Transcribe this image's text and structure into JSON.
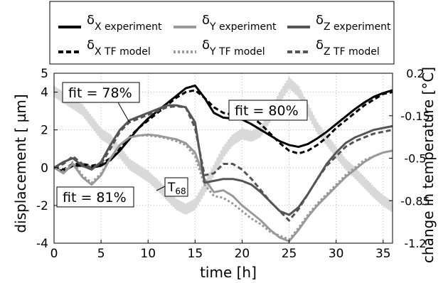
{
  "chart_data": {
    "type": "line",
    "xlabel": "time [h]",
    "ylabel": "displacement [ µm]",
    "ylabel_right": "change in temperature [°C]",
    "xlim": [
      0,
      36
    ],
    "ylim": [
      -4,
      5
    ],
    "ylim_right": [
      -1.2,
      0.2
    ],
    "x_ticks": [
      "0",
      "5",
      "10",
      "15",
      "20",
      "25",
      "30",
      "35"
    ],
    "y_ticks": [
      "-4",
      "-2",
      "0",
      "2",
      "4"
    ],
    "y_top_tick": "5",
    "y_right_ticks": [
      "0.2",
      "-0.15",
      "-0.5",
      "-0.85",
      "-1.2"
    ],
    "grid": true,
    "legend_position": "top",
    "colors": {
      "x": "#000000",
      "y": "#999999",
      "z": "#555555",
      "temp": "#d9d9d9"
    },
    "legend": [
      {
        "key": "x_exp",
        "symbol": "δ",
        "sub": "X experiment"
      },
      {
        "key": "y_exp",
        "symbol": "δ",
        "sub": "Y experiment"
      },
      {
        "key": "z_exp",
        "symbol": "δ",
        "sub": "Z experiment"
      },
      {
        "key": "x_tf",
        "symbol": "δ",
        "sub": "X  TF  model"
      },
      {
        "key": "y_tf",
        "symbol": "δ",
        "sub": "Y  TF  model"
      },
      {
        "key": "z_tf",
        "symbol": "δ",
        "sub": "Z  TF  model"
      }
    ],
    "annotations": {
      "fit_z": "fit = 78%",
      "fit_x": "fit = 80%",
      "fit_y": "fit = 81%",
      "temp_label": "T",
      "temp_label_sub": "68"
    },
    "series": [
      {
        "key": "x_exp",
        "color": "#000000",
        "style": "solid",
        "x": [
          0,
          1,
          2,
          3,
          4,
          5,
          6,
          7,
          8,
          9,
          10,
          11,
          12,
          13,
          14,
          15,
          16,
          17,
          18,
          19,
          20,
          21,
          22,
          23,
          24,
          25,
          26,
          27,
          28,
          29,
          30,
          31,
          32,
          33,
          34,
          35,
          36
        ],
        "y": [
          0,
          -0.2,
          0.1,
          0.1,
          0,
          0.1,
          0.4,
          0.9,
          1.5,
          2.1,
          2.6,
          3.0,
          3.4,
          3.8,
          4.2,
          4.35,
          3.7,
          2.9,
          2.65,
          2.6,
          2.55,
          2.3,
          2.0,
          1.7,
          1.4,
          1.2,
          1.1,
          1.25,
          1.55,
          1.9,
          2.3,
          2.7,
          3.1,
          3.45,
          3.75,
          3.95,
          4.1
        ]
      },
      {
        "key": "x_tf",
        "color": "#000000",
        "style": "dashed",
        "x": [
          0,
          1,
          2,
          3,
          4,
          5,
          6,
          7,
          8,
          9,
          10,
          11,
          12,
          13,
          14,
          15,
          16,
          17,
          18,
          19,
          20,
          21,
          22,
          23,
          24,
          25,
          26,
          27,
          28,
          29,
          30,
          31,
          32,
          33,
          34,
          35,
          36
        ],
        "y": [
          0,
          -0.1,
          0.2,
          0.2,
          0.1,
          0.2,
          0.5,
          1.0,
          1.6,
          2.1,
          2.5,
          2.9,
          3.3,
          3.7,
          4.0,
          4.1,
          3.7,
          3.2,
          2.9,
          2.8,
          2.8,
          2.7,
          2.3,
          1.8,
          1.3,
          0.9,
          0.75,
          0.9,
          1.2,
          1.6,
          2.1,
          2.5,
          2.9,
          3.3,
          3.6,
          3.9,
          4.0
        ]
      },
      {
        "key": "y_exp",
        "color": "#999999",
        "style": "solid",
        "x": [
          0,
          1,
          2,
          3,
          4,
          5,
          6,
          7,
          8,
          9,
          10,
          11,
          12,
          13,
          14,
          15,
          16,
          17,
          18,
          19,
          20,
          21,
          22,
          23,
          24,
          25,
          26,
          27,
          28,
          29,
          30,
          31,
          32,
          33,
          34,
          35,
          36
        ],
        "y": [
          0,
          -0.3,
          0.2,
          -0.5,
          -0.9,
          -0.4,
          0.5,
          1.2,
          1.6,
          1.7,
          1.75,
          1.7,
          1.6,
          1.5,
          1.3,
          0.8,
          -0.6,
          -1.3,
          -1.2,
          -1.5,
          -2.0,
          -2.4,
          -2.8,
          -3.3,
          -3.7,
          -3.9,
          -3.3,
          -2.6,
          -2.0,
          -1.5,
          -1.0,
          -0.5,
          -0.1,
          0.3,
          0.6,
          0.8,
          0.9
        ]
      },
      {
        "key": "y_tf",
        "color": "#999999",
        "style": "dotted",
        "x": [
          0,
          1,
          2,
          3,
          4,
          5,
          6,
          7,
          8,
          9,
          10,
          11,
          12,
          13,
          14,
          15,
          16,
          17,
          18,
          19,
          20,
          21,
          22,
          23,
          24,
          25,
          26,
          27,
          28,
          29,
          30,
          31,
          32,
          33,
          34,
          35,
          36
        ],
        "y": [
          0,
          -0.2,
          0.3,
          -0.4,
          -0.8,
          -0.3,
          0.5,
          1.2,
          1.6,
          1.7,
          1.7,
          1.65,
          1.55,
          1.4,
          1.2,
          0.6,
          -0.9,
          -1.5,
          -1.6,
          -1.9,
          -2.3,
          -2.7,
          -3.0,
          -3.4,
          -3.6,
          -3.8,
          -3.2,
          -2.5,
          -1.9,
          -1.4,
          -0.9,
          -0.4,
          0.0,
          0.4,
          0.6,
          0.8,
          0.9
        ]
      },
      {
        "key": "z_exp",
        "color": "#555555",
        "style": "solid",
        "x": [
          0,
          1,
          2,
          3,
          4,
          5,
          6,
          7,
          8,
          9,
          10,
          11,
          12,
          13,
          14,
          15,
          16,
          17,
          18,
          19,
          20,
          21,
          22,
          23,
          24,
          25,
          26,
          27,
          28,
          29,
          30,
          31,
          32,
          33,
          34,
          35,
          36
        ],
        "y": [
          0,
          0.3,
          0.5,
          0.1,
          -0.1,
          0.3,
          1.2,
          2.0,
          2.5,
          2.7,
          2.9,
          3.1,
          3.3,
          3.3,
          3.2,
          2.4,
          -0.8,
          -0.7,
          -0.6,
          -0.6,
          -0.7,
          -0.9,
          -1.3,
          -1.8,
          -2.3,
          -2.5,
          -2.1,
          -1.4,
          -0.6,
          0.2,
          0.8,
          1.3,
          1.6,
          1.8,
          2.0,
          2.1,
          2.2
        ]
      },
      {
        "key": "z_tf",
        "color": "#555555",
        "style": "dashed",
        "x": [
          0,
          1,
          2,
          3,
          4,
          5,
          6,
          7,
          8,
          9,
          10,
          11,
          12,
          13,
          14,
          15,
          16,
          17,
          18,
          19,
          20,
          21,
          22,
          23,
          24,
          25,
          26,
          27,
          28,
          29,
          30,
          31,
          32,
          33,
          34,
          35,
          36
        ],
        "y": [
          0,
          0.2,
          0.6,
          0.2,
          0.0,
          0.2,
          1.0,
          1.9,
          2.4,
          2.6,
          2.8,
          3.0,
          3.2,
          3.25,
          3.2,
          2.1,
          -0.4,
          -0.3,
          0.2,
          0.2,
          -0.1,
          -0.6,
          -1.2,
          -1.8,
          -2.3,
          -2.8,
          -2.2,
          -1.4,
          -0.6,
          0.1,
          0.6,
          1.1,
          1.4,
          1.6,
          1.8,
          1.9,
          2.0
        ]
      }
    ],
    "temperature": {
      "key": "temp_T68",
      "color": "#d9d9d9",
      "x": [
        0,
        1,
        2,
        3,
        4,
        5,
        6,
        7,
        8,
        9,
        10,
        11,
        12,
        13,
        14,
        15,
        16,
        17,
        18,
        19,
        20,
        21,
        22,
        23,
        24,
        25,
        26,
        27,
        28,
        29,
        30,
        31,
        32,
        33,
        34,
        35,
        36
      ],
      "y": [
        0.05,
        0.0,
        -0.05,
        -0.1,
        -0.2,
        -0.3,
        -0.35,
        -0.45,
        -0.55,
        -0.6,
        -0.65,
        -0.72,
        -0.8,
        -0.88,
        -0.92,
        -0.88,
        -0.75,
        -0.6,
        -0.45,
        -0.35,
        -0.3,
        -0.32,
        -0.28,
        -0.15,
        0.0,
        0.12,
        0.05,
        -0.1,
        -0.25,
        -0.35,
        -0.45,
        -0.55,
        -0.62,
        -0.7,
        -0.78,
        -0.85,
        -0.9
      ]
    }
  }
}
